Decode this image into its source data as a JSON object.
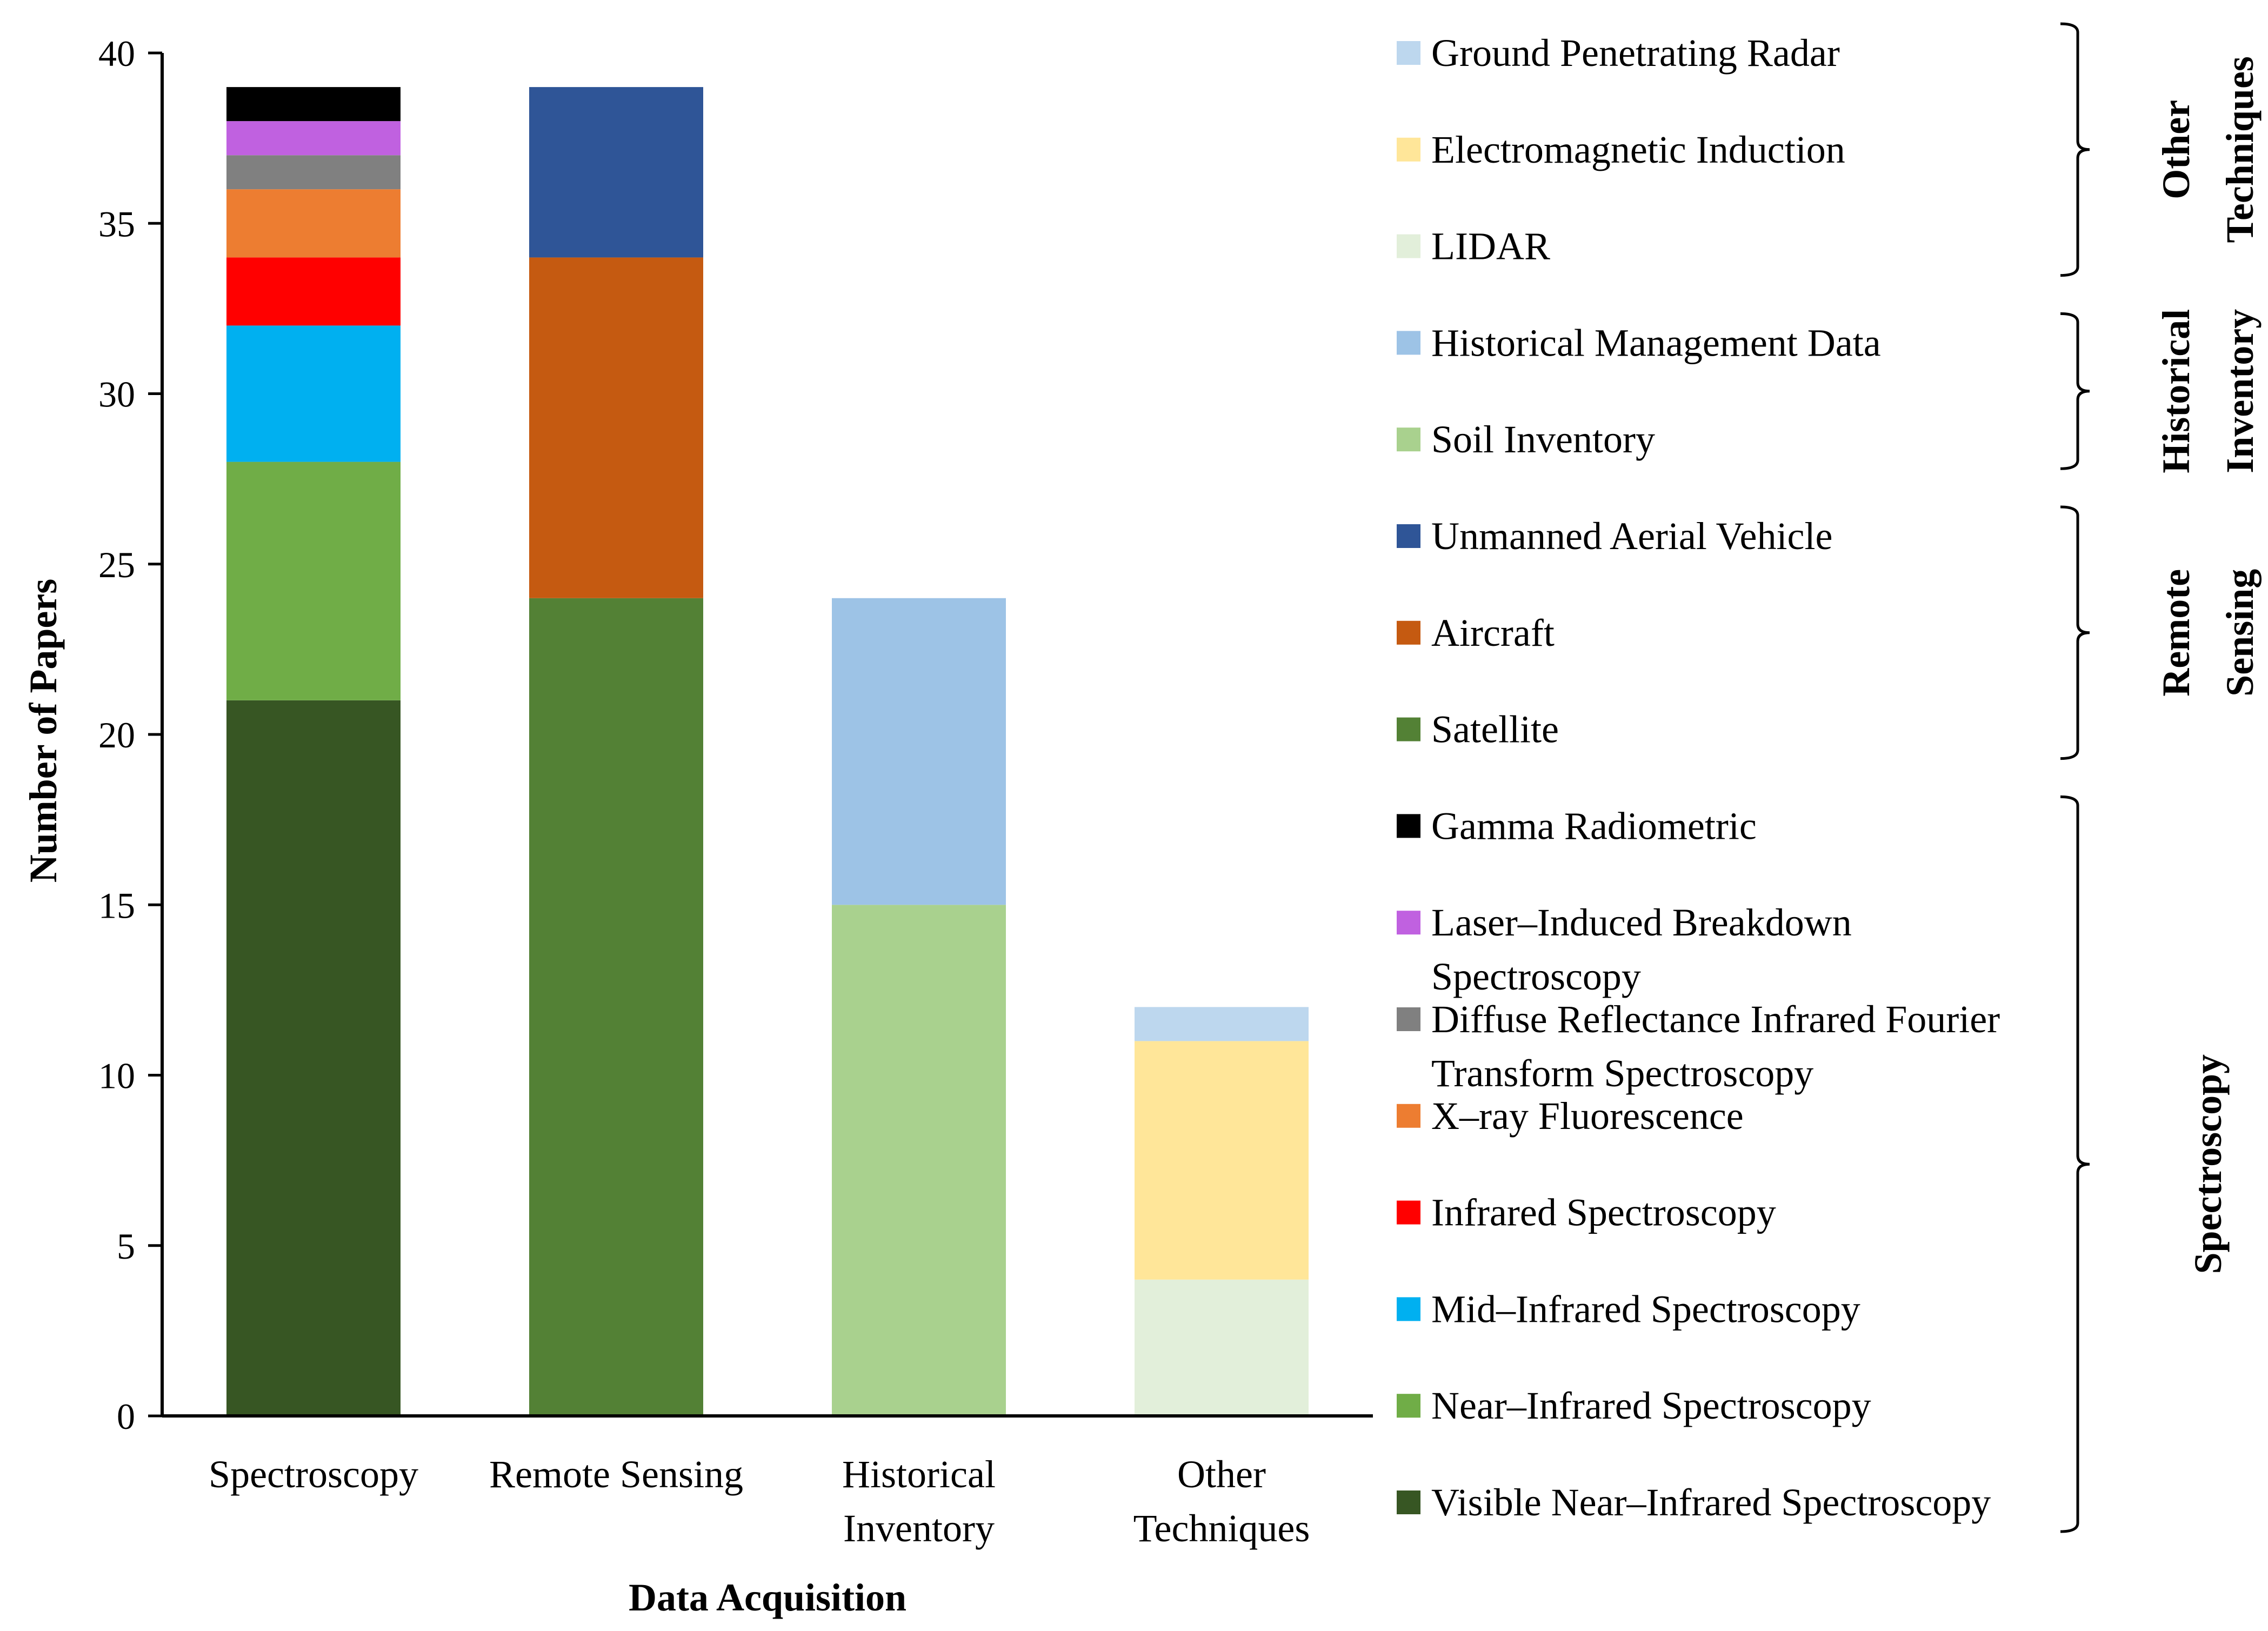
{
  "chart_data": {
    "type": "bar",
    "stacked": true,
    "title": "",
    "xlabel": "Data Acquisition",
    "ylabel": "Number of Papers",
    "ylim": [
      0,
      40
    ],
    "yticks": [
      0,
      5,
      10,
      15,
      20,
      25,
      30,
      35,
      40
    ],
    "grid": false,
    "legend_position": "right",
    "categories": [
      [
        "Spectroscopy"
      ],
      [
        "Remote Sensing"
      ],
      [
        "Historical",
        "Inventory"
      ],
      [
        "Other",
        "Techniques"
      ]
    ],
    "series": [
      {
        "name": "Visible Near–Infrared Spectroscopy",
        "color": "#375623",
        "values": [
          21,
          0,
          0,
          0
        ]
      },
      {
        "name": "Near–Infrared Spectroscopy",
        "color": "#70AD47",
        "values": [
          7,
          0,
          0,
          0
        ]
      },
      {
        "name": "Mid–Infrared Spectroscopy",
        "color": "#00B0F0",
        "values": [
          4,
          0,
          0,
          0
        ]
      },
      {
        "name": "Infrared Spectroscopy",
        "color": "#FF0000",
        "values": [
          2,
          0,
          0,
          0
        ]
      },
      {
        "name": "X–ray Fluorescence",
        "color": "#ED7D31",
        "values": [
          2,
          0,
          0,
          0
        ]
      },
      {
        "name": "Diffuse Reflectance Infrared Fourier Transform Spectroscopy",
        "color": "#808080",
        "values": [
          1,
          0,
          0,
          0
        ]
      },
      {
        "name": "Laser–Induced Breakdown Spectroscopy",
        "color": "#C061E0",
        "values": [
          1,
          0,
          0,
          0
        ]
      },
      {
        "name": "Gamma Radiometric",
        "color": "#000000",
        "values": [
          1,
          0,
          0,
          0
        ]
      },
      {
        "name": "Satellite",
        "color": "#538135",
        "values": [
          0,
          24,
          0,
          0
        ]
      },
      {
        "name": "Aircraft",
        "color": "#C55A11",
        "values": [
          0,
          10,
          0,
          0
        ]
      },
      {
        "name": "Unmanned Aerial Vehicle",
        "color": "#2F5597",
        "values": [
          0,
          5,
          0,
          0
        ]
      },
      {
        "name": "Soil Inventory",
        "color": "#A9D18E",
        "values": [
          0,
          0,
          15,
          0
        ]
      },
      {
        "name": "Historical Management Data",
        "color": "#9DC3E6",
        "values": [
          0,
          0,
          9,
          0
        ]
      },
      {
        "name": "LIDAR",
        "color": "#E2EFDA",
        "values": [
          0,
          0,
          0,
          4
        ]
      },
      {
        "name": "Electromagnetic Induction",
        "color": "#FFE699",
        "values": [
          0,
          0,
          0,
          7
        ]
      },
      {
        "name": "Ground Penetrating Radar",
        "color": "#BDD7EE",
        "values": [
          0,
          0,
          0,
          1
        ]
      }
    ],
    "legend": [
      {
        "lines": [
          "Ground Penetrating Radar"
        ],
        "color": "#BDD7EE"
      },
      {
        "lines": [
          "Electromagnetic Induction"
        ],
        "color": "#FFE699"
      },
      {
        "lines": [
          "LIDAR"
        ],
        "color": "#E2EFDA"
      },
      {
        "lines": [
          "Historical Management Data"
        ],
        "color": "#9DC3E6"
      },
      {
        "lines": [
          "Soil Inventory"
        ],
        "color": "#A9D18E"
      },
      {
        "lines": [
          "Unmanned Aerial Vehicle"
        ],
        "color": "#2F5597"
      },
      {
        "lines": [
          "Aircraft"
        ],
        "color": "#C55A11"
      },
      {
        "lines": [
          "Satellite"
        ],
        "color": "#538135"
      },
      {
        "lines": [
          "Gamma Radiometric"
        ],
        "color": "#000000"
      },
      {
        "lines": [
          "Laser–Induced Breakdown",
          "Spectroscopy"
        ],
        "color": "#C061E0"
      },
      {
        "lines": [
          "Diffuse Reflectance Infrared Fourier",
          "Transform Spectroscopy"
        ],
        "color": "#808080"
      },
      {
        "lines": [
          "X–ray Fluorescence"
        ],
        "color": "#ED7D31"
      },
      {
        "lines": [
          "Infrared Spectroscopy"
        ],
        "color": "#FF0000"
      },
      {
        "lines": [
          "Mid–Infrared Spectroscopy"
        ],
        "color": "#00B0F0"
      },
      {
        "lines": [
          "Near–Infrared Spectroscopy"
        ],
        "color": "#70AD47"
      },
      {
        "lines": [
          "Visible Near–Infrared Spectroscopy"
        ],
        "color": "#375623"
      }
    ],
    "legend_groups": [
      {
        "lines": [
          "Other",
          "Techniques"
        ],
        "first": 0,
        "last": 2
      },
      {
        "lines": [
          "Historical",
          "Inventory"
        ],
        "first": 3,
        "last": 4
      },
      {
        "lines": [
          "Remote",
          "Sensing"
        ],
        "first": 5,
        "last": 7
      },
      {
        "lines": [
          "Spectroscopy"
        ],
        "first": 8,
        "last": 15
      }
    ]
  }
}
